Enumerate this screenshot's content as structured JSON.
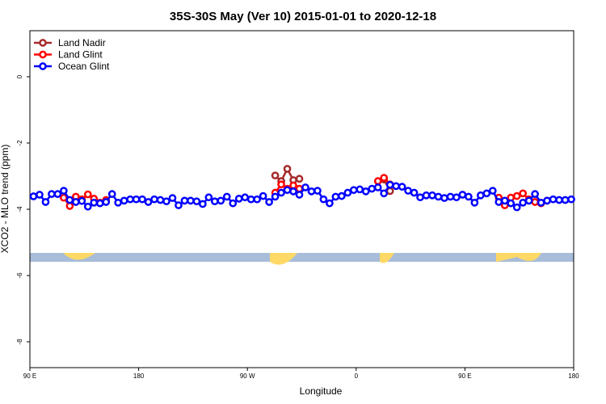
{
  "chart_data": {
    "type": "line",
    "title": "35S-30S May (Ver 10)   2015-01-01 to 2020-12-18",
    "x_label": "Longitude",
    "y_label": "XCO2 - MLO trend (ppm)",
    "xlim": [
      90,
      540
    ],
    "ylim": [
      -8.78,
      1.39
    ],
    "xticks": [
      {
        "value": 90,
        "label": "90 E"
      },
      {
        "value": 180,
        "label": "180"
      },
      {
        "value": 270,
        "label": "90 W"
      },
      {
        "value": 360,
        "label": "0"
      },
      {
        "value": 450,
        "label": "90 E"
      },
      {
        "value": 540,
        "label": "180"
      }
    ],
    "yticks": [
      0,
      -2,
      -4,
      -6,
      -8
    ],
    "legend": "top-left",
    "series": [
      {
        "name": "Land Nadir",
        "color": "#a52a2a",
        "x": [
          293,
          298,
          303,
          308,
          313,
          350,
          383,
          388
        ],
        "values": [
          -2.98,
          -3.15,
          -2.78,
          -3.12,
          -3.08,
          null,
          -3.1,
          -3.45
        ]
      },
      {
        "name": "Land Glint",
        "color": "#ff0000",
        "x": [
          118,
          123,
          128,
          133,
          138,
          143,
          148,
          153,
          220,
          293,
          298,
          303,
          308,
          313,
          350,
          378,
          383,
          388,
          430,
          478,
          483,
          488,
          493,
          498,
          503,
          508,
          513,
          518
        ],
        "values": [
          -3.65,
          -3.9,
          -3.62,
          -3.7,
          -3.55,
          -3.68,
          -3.8,
          -3.72,
          null,
          -3.5,
          -3.25,
          -3.38,
          -3.28,
          -3.38,
          null,
          -3.15,
          -3.05,
          -3.25,
          null,
          -3.65,
          -3.88,
          -3.65,
          -3.6,
          -3.52,
          -3.7,
          -3.78,
          -3.82,
          -3.74
        ]
      },
      {
        "name": "Ocean Glint",
        "color": "#0000ff",
        "x": [
          93,
          98,
          103,
          108,
          113,
          118,
          123,
          128,
          133,
          138,
          143,
          148,
          153,
          158,
          163,
          168,
          173,
          178,
          183,
          188,
          193,
          198,
          203,
          208,
          213,
          218,
          223,
          228,
          233,
          238,
          243,
          248,
          253,
          258,
          263,
          268,
          273,
          278,
          283,
          288,
          293,
          298,
          303,
          308,
          313,
          318,
          323,
          328,
          333,
          338,
          343,
          348,
          353,
          358,
          363,
          368,
          373,
          378,
          383,
          388,
          393,
          398,
          403,
          408,
          413,
          418,
          423,
          428,
          433,
          438,
          443,
          448,
          453,
          458,
          463,
          468,
          473,
          478,
          483,
          488,
          493,
          498,
          503,
          508,
          513,
          518,
          523,
          528,
          533,
          538
        ],
        "values": [
          -3.61,
          -3.56,
          -3.78,
          -3.54,
          -3.54,
          -3.44,
          -3.72,
          -3.78,
          -3.75,
          -3.92,
          -3.8,
          -3.82,
          -3.78,
          -3.54,
          -3.8,
          -3.74,
          -3.7,
          -3.7,
          -3.7,
          -3.78,
          -3.7,
          -3.72,
          -3.76,
          -3.66,
          -3.88,
          -3.74,
          -3.74,
          -3.76,
          -3.84,
          -3.64,
          -3.76,
          -3.74,
          -3.62,
          -3.82,
          -3.68,
          -3.64,
          -3.7,
          -3.7,
          -3.6,
          -3.78,
          -3.62,
          -3.5,
          -3.42,
          -3.46,
          -3.56,
          -3.34,
          -3.46,
          -3.44,
          -3.7,
          -3.82,
          -3.62,
          -3.6,
          -3.5,
          -3.42,
          -3.4,
          -3.46,
          -3.38,
          -3.34,
          -3.52,
          -3.26,
          -3.3,
          -3.32,
          -3.44,
          -3.5,
          -3.64,
          -3.58,
          -3.58,
          -3.62,
          -3.66,
          -3.62,
          -3.64,
          -3.56,
          -3.62,
          -3.8,
          -3.58,
          -3.52,
          -3.44,
          -3.78,
          -3.74,
          -3.82,
          -3.94,
          -3.8,
          -3.74,
          -3.54,
          -3.8,
          -3.74,
          -3.7,
          -3.72,
          -3.72,
          -3.7
        ]
      }
    ]
  }
}
